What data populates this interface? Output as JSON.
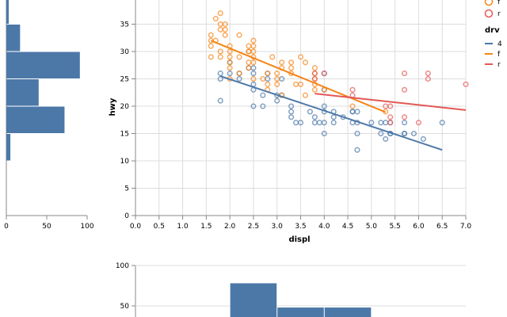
{
  "colors": {
    "4": "#4c78a8",
    "f": "#f58518",
    "r": "#e45756",
    "hist": "#4c78a8"
  },
  "chart_data": [
    {
      "type": "scatter",
      "xlabel": "displ",
      "ylabel": "hwy",
      "xlim": [
        0,
        7
      ],
      "ylim": [
        0,
        40
      ],
      "x_ticks": [
        "0.0",
        "0.5",
        "1.0",
        "1.5",
        "2.0",
        "2.5",
        "3.0",
        "3.5",
        "4.0",
        "4.5",
        "5.0",
        "5.5",
        "6.0",
        "6.5",
        "7.0"
      ],
      "y_ticks": [
        "0",
        "5",
        "10",
        "15",
        "20",
        "25",
        "30",
        "35"
      ],
      "grid": true,
      "series": [
        {
          "name": "4",
          "points": [
            [
              1.8,
              26
            ],
            [
              1.8,
              25
            ],
            [
              2.0,
              28
            ],
            [
              2.0,
              26
            ],
            [
              2.8,
              26
            ],
            [
              2.8,
              25
            ],
            [
              3.1,
              25
            ],
            [
              3.1,
              22
            ],
            [
              2.5,
              23
            ],
            [
              2.5,
              24
            ],
            [
              2.5,
              26
            ],
            [
              3.3,
              20
            ],
            [
              3.3,
              19
            ],
            [
              3.8,
              18
            ],
            [
              4.0,
              20
            ],
            [
              4.0,
              19
            ],
            [
              4.2,
              17
            ],
            [
              4.2,
              18
            ],
            [
              4.7,
              17
            ],
            [
              4.7,
              19
            ],
            [
              4.7,
              12
            ],
            [
              5.2,
              17
            ],
            [
              5.7,
              17
            ],
            [
              5.9,
              15
            ],
            [
              4.6,
              19
            ],
            [
              5.4,
              17
            ],
            [
              5.4,
              15
            ],
            [
              4.0,
              17
            ],
            [
              4.0,
              15
            ],
            [
              4.6,
              17
            ],
            [
              5.0,
              17
            ],
            [
              5.3,
              17
            ],
            [
              5.7,
              15
            ],
            [
              6.5,
              17
            ],
            [
              3.7,
              19
            ],
            [
              3.9,
              17
            ],
            [
              4.7,
              15
            ],
            [
              2.7,
              20
            ],
            [
              2.7,
              22
            ],
            [
              3.4,
              17
            ],
            [
              4.0,
              26
            ],
            [
              4.0,
              23
            ],
            [
              2.5,
              20
            ],
            [
              3.0,
              21
            ],
            [
              3.3,
              18
            ],
            [
              5.2,
              15
            ],
            [
              5.3,
              14
            ],
            [
              2.2,
              26
            ],
            [
              2.4,
              27
            ],
            [
              2.5,
              27
            ],
            [
              2.2,
              25
            ],
            [
              6.1,
              14
            ],
            [
              4.4,
              18
            ],
            [
              4.6,
              19
            ],
            [
              5.4,
              15
            ],
            [
              5.7,
              15
            ],
            [
              3.5,
              17
            ],
            [
              3.8,
              17
            ],
            [
              4.2,
              19
            ],
            [
              3.0,
              22
            ],
            [
              1.8,
              21
            ]
          ]
        },
        {
          "name": "f",
          "points": [
            [
              1.8,
              29
            ],
            [
              2.0,
              31
            ],
            [
              2.8,
              26
            ],
            [
              2.4,
              30
            ],
            [
              2.5,
              29
            ],
            [
              3.0,
              26
            ],
            [
              3.3,
              26
            ],
            [
              3.8,
              24
            ],
            [
              1.6,
              32
            ],
            [
              1.6,
              33
            ],
            [
              1.7,
              36
            ],
            [
              1.8,
              35
            ],
            [
              1.8,
              37
            ],
            [
              2.0,
              30
            ],
            [
              2.2,
              29
            ],
            [
              2.4,
              28
            ],
            [
              2.4,
              27
            ],
            [
              2.5,
              32
            ],
            [
              2.5,
              30
            ],
            [
              3.5,
              29
            ],
            [
              3.1,
              27
            ],
            [
              3.8,
              25
            ],
            [
              3.4,
              24
            ],
            [
              3.3,
              27
            ],
            [
              2.7,
              25
            ],
            [
              3.8,
              26
            ],
            [
              3.6,
              28
            ],
            [
              2.9,
              29
            ],
            [
              2.0,
              28
            ],
            [
              2.2,
              26
            ],
            [
              1.9,
              34
            ],
            [
              2.5,
              25
            ],
            [
              3.0,
              24
            ],
            [
              3.6,
              22
            ],
            [
              4.0,
              23
            ],
            [
              4.6,
              20
            ],
            [
              5.3,
              19
            ],
            [
              1.6,
              29
            ],
            [
              1.8,
              30
            ],
            [
              2.0,
              29
            ],
            [
              3.0,
              25
            ],
            [
              3.5,
              24
            ],
            [
              3.8,
              23
            ],
            [
              2.4,
              31
            ],
            [
              2.5,
              31
            ],
            [
              1.9,
              33
            ],
            [
              2.8,
              24
            ],
            [
              3.1,
              28
            ],
            [
              1.6,
              31
            ],
            [
              1.7,
              32
            ],
            [
              1.8,
              34
            ],
            [
              1.9,
              35
            ],
            [
              2.0,
              27
            ],
            [
              2.2,
              33
            ],
            [
              2.4,
              30
            ],
            [
              2.5,
              28
            ],
            [
              3.3,
              28
            ],
            [
              3.8,
              27
            ],
            [
              2.0,
              25
            ],
            [
              2.8,
              23
            ],
            [
              3.1,
              22
            ]
          ]
        },
        {
          "name": "r",
          "points": [
            [
              3.8,
              26
            ],
            [
              3.8,
              25
            ],
            [
              4.0,
              26
            ],
            [
              4.6,
              23
            ],
            [
              4.6,
              22
            ],
            [
              5.4,
              18
            ],
            [
              5.4,
              17
            ],
            [
              5.7,
              26
            ],
            [
              5.7,
              23
            ],
            [
              6.2,
              26
            ],
            [
              6.2,
              25
            ],
            [
              7.0,
              24
            ],
            [
              5.3,
              20
            ],
            [
              5.4,
              20
            ],
            [
              6.0,
              17
            ],
            [
              5.7,
              18
            ]
          ]
        }
      ],
      "trend_lines": [
        {
          "name": "4",
          "x": [
            1.8,
            6.5
          ],
          "y": [
            25.5,
            12.0
          ]
        },
        {
          "name": "f",
          "x": [
            1.6,
            5.3
          ],
          "y": [
            32.0,
            18.9
          ]
        },
        {
          "name": "r",
          "x": [
            3.8,
            7.0
          ],
          "y": [
            22.3,
            19.3
          ]
        }
      ],
      "legend": {
        "title": "drv",
        "placement": "right",
        "entries": [
          "4",
          "f",
          "r"
        ]
      },
      "color_legend_partial": {
        "entries": [
          "f",
          "r"
        ]
      }
    },
    {
      "type": "bar",
      "orientation": "horizontal",
      "title": "",
      "xlabel": "",
      "ylabel": "",
      "xlim": [
        0,
        100
      ],
      "x_ticks": [
        "0",
        "50",
        "100"
      ],
      "bins": [
        [
          10,
          15
        ],
        [
          15,
          20
        ],
        [
          20,
          25
        ],
        [
          25,
          30
        ],
        [
          30,
          35
        ],
        [
          35,
          40
        ]
      ],
      "values": [
        5,
        72,
        40,
        91,
        17,
        3
      ]
    },
    {
      "type": "bar",
      "title": "",
      "xlabel": "",
      "ylabel": "",
      "ylim": [
        0,
        100
      ],
      "y_ticks": [
        "100",
        "50"
      ],
      "bins": [
        [
          2,
          3
        ],
        [
          3,
          4
        ],
        [
          4,
          5
        ]
      ],
      "values": [
        78,
        48,
        48
      ]
    }
  ]
}
